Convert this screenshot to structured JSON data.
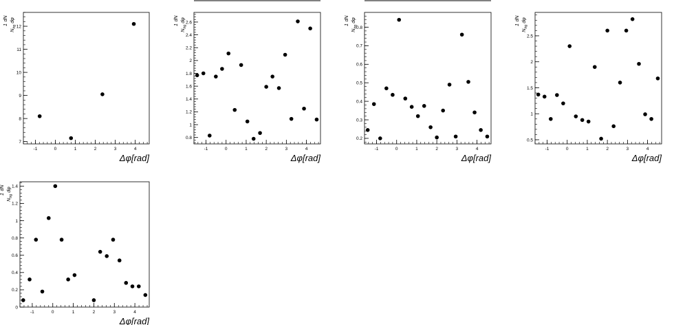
{
  "y_axis_label": {
    "numerator_1": "1",
    "numerator_dN": "dN",
    "denominator": "N",
    "denominator_sub": "trg",
    "denominator_rest": "dφ"
  },
  "x_axis_label": "Δφ[rad]",
  "chart_data": [
    {
      "type": "scatter",
      "xlabel": "Δφ[rad]",
      "ylabel": "1/N_trg dN/dφ",
      "xlim": [
        -1.6,
        4.7
      ],
      "ylim": [
        6.9,
        12.6
      ],
      "x_ticks": [
        -1,
        0,
        1,
        2,
        3,
        4
      ],
      "y_ticks": [
        7,
        8,
        9,
        10,
        11,
        12
      ],
      "x": [
        -0.785,
        0.785,
        2.356,
        3.927
      ],
      "y": [
        8.1,
        7.15,
        9.05,
        12.1
      ]
    },
    {
      "type": "scatter",
      "xlabel": "Δφ[rad]",
      "ylabel": "1/N_trg dN/dφ",
      "xlim": [
        -1.6,
        4.7
      ],
      "ylim": [
        0.7,
        2.75
      ],
      "x_ticks": [
        -1,
        0,
        1,
        2,
        3,
        4
      ],
      "y_ticks": [
        0.8,
        1,
        1.2,
        1.4,
        1.6,
        1.8,
        2,
        2.2,
        2.4,
        2.6
      ],
      "x": [
        -1.44,
        -1.13,
        -0.82,
        -0.51,
        -0.2,
        0.12,
        0.43,
        0.75,
        1.06,
        1.37,
        1.69,
        2.0,
        2.31,
        2.63,
        2.94,
        3.25,
        3.57,
        3.88,
        4.19,
        4.51
      ],
      "y": [
        1.77,
        1.8,
        0.83,
        1.75,
        1.87,
        2.11,
        1.23,
        1.93,
        1.05,
        0.78,
        0.87,
        1.59,
        1.75,
        1.57,
        2.09,
        1.09,
        2.61,
        1.25,
        2.5,
        1.08
      ]
    },
    {
      "type": "scatter",
      "xlabel": "Δφ[rad]",
      "ylabel": "1/N_trg dN/dφ",
      "xlim": [
        -1.6,
        4.7
      ],
      "ylim": [
        0.17,
        0.88
      ],
      "x_ticks": [
        -1,
        0,
        1,
        2,
        3,
        4
      ],
      "y_ticks": [
        0.2,
        0.3,
        0.4,
        0.5,
        0.6,
        0.7,
        0.8
      ],
      "x": [
        -1.44,
        -1.13,
        -0.82,
        -0.51,
        -0.2,
        0.12,
        0.43,
        0.75,
        1.06,
        1.37,
        1.69,
        2.0,
        2.31,
        2.63,
        2.94,
        3.25,
        3.57,
        3.88,
        4.19,
        4.51
      ],
      "y": [
        0.245,
        0.385,
        0.2,
        0.47,
        0.435,
        0.84,
        0.415,
        0.37,
        0.32,
        0.375,
        0.26,
        0.205,
        0.35,
        0.49,
        0.21,
        0.76,
        0.505,
        0.34,
        0.245,
        0.21
      ]
    },
    {
      "type": "scatter",
      "xlabel": "Δφ[rad]",
      "ylabel": "1/N_trg dN/dφ",
      "xlim": [
        -1.6,
        4.7
      ],
      "ylim": [
        0.42,
        2.95
      ],
      "x_ticks": [
        -1,
        0,
        1,
        2,
        3,
        4
      ],
      "y_ticks": [
        0.5,
        1,
        1.5,
        2,
        2.5
      ],
      "x": [
        -1.44,
        -1.13,
        -0.82,
        -0.51,
        -0.2,
        0.12,
        0.43,
        0.75,
        1.06,
        1.37,
        1.69,
        2.0,
        2.31,
        2.63,
        2.94,
        3.25,
        3.57,
        3.88,
        4.19,
        4.51
      ],
      "y": [
        1.37,
        1.33,
        0.9,
        1.36,
        1.2,
        2.3,
        0.95,
        0.88,
        0.85,
        1.9,
        0.52,
        2.6,
        0.76,
        1.6,
        2.6,
        2.82,
        1.96,
        0.99,
        0.9,
        1.68
      ]
    },
    {
      "type": "scatter",
      "xlabel": "Δφ[rad]",
      "ylabel": "1/N_trg dN/dφ",
      "xlim": [
        -1.6,
        4.7
      ],
      "ylim": [
        0.0,
        1.45
      ],
      "x_ticks": [
        -1,
        0,
        1,
        2,
        3,
        4
      ],
      "y_ticks": [
        0,
        0.2,
        0.4,
        0.6,
        0.8,
        1,
        1.2,
        1.4
      ],
      "x": [
        -1.44,
        -1.13,
        -0.82,
        -0.51,
        -0.2,
        0.12,
        0.43,
        0.75,
        1.06,
        2.0,
        2.31,
        2.63,
        2.94,
        3.25,
        3.57,
        3.88,
        4.19,
        4.51
      ],
      "y": [
        0.08,
        0.32,
        0.78,
        0.18,
        1.03,
        1.4,
        0.78,
        0.32,
        0.37,
        0.08,
        0.64,
        0.59,
        0.78,
        0.54,
        0.28,
        0.24,
        0.24,
        0.14
      ]
    }
  ]
}
